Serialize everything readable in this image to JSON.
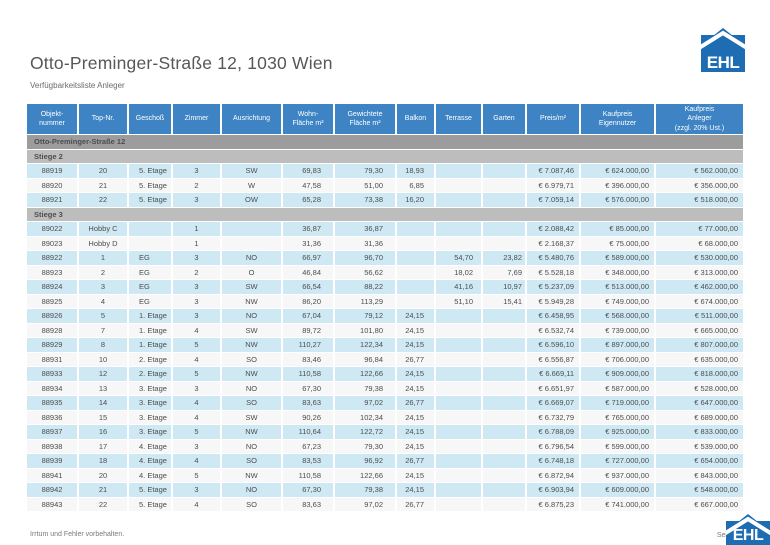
{
  "header": {
    "title": "Otto-Preminger-Straße 12, 1030 Wien",
    "subtitle": "Verfügbarkeitsliste Anleger"
  },
  "logo": {
    "text": "EHL"
  },
  "footer": {
    "disclaimer": "Irrtum und Fehler vorbehalten.",
    "page_text": "Sei"
  },
  "colors": {
    "header_blue": "#3e84c4",
    "logo_blue": "#1e6cb2",
    "group_gray": "#9c9c9c",
    "stiege_gray": "#bdbdbd",
    "row_blue": "#cfe9f4",
    "row_white": "#f7f7f7"
  },
  "table": {
    "group_title": "Otto-Preminger-Straße 12",
    "columns": [
      {
        "lines": [
          "Objekt-",
          "nummer"
        ]
      },
      {
        "lines": [
          "Top-Nr."
        ]
      },
      {
        "lines": [
          "Geschoß"
        ]
      },
      {
        "lines": [
          "Zimmer"
        ]
      },
      {
        "lines": [
          "Ausrichtung"
        ]
      },
      {
        "lines": [
          "Wohn-",
          "Fläche m²"
        ]
      },
      {
        "lines": [
          "Gewichtete",
          "Fläche m²"
        ]
      },
      {
        "lines": [
          "Balkon"
        ]
      },
      {
        "lines": [
          "Terrasse"
        ]
      },
      {
        "lines": [
          "Garten"
        ]
      },
      {
        "lines": [
          "Preis/m²"
        ]
      },
      {
        "lines": [
          "Kaufpreis",
          "Eigennutzer"
        ]
      },
      {
        "lines": [
          "Kaufpreis",
          "Anleger",
          "(zzgl. 20% Ust.)"
        ]
      }
    ],
    "sections": [
      {
        "label": "Stiege 2",
        "rows": [
          [
            "88919",
            "20",
            "5. Etage",
            "3",
            "SW",
            "69,83",
            "79,30",
            "18,93",
            "",
            "",
            "€ 7.087,46",
            "€ 624.000,00",
            "€ 562.000,00"
          ],
          [
            "88920",
            "21",
            "5. Etage",
            "2",
            "W",
            "47,58",
            "51,00",
            "6,85",
            "",
            "",
            "€ 6.979,71",
            "€ 396.000,00",
            "€ 356.000,00"
          ],
          [
            "88921",
            "22",
            "5. Etage",
            "3",
            "OW",
            "65,28",
            "73,38",
            "16,20",
            "",
            "",
            "€ 7.059,14",
            "€ 576.000,00",
            "€ 518.000,00"
          ]
        ]
      },
      {
        "label": "Stiege 3",
        "rows": [
          [
            "89022",
            "Hobby C",
            "",
            "1",
            "",
            "36,87",
            "36,87",
            "",
            "",
            "",
            "€ 2.088,42",
            "€ 85.000,00",
            "€ 77.000,00"
          ],
          [
            "89023",
            "Hobby D",
            "",
            "1",
            "",
            "31,36",
            "31,36",
            "",
            "",
            "",
            "€ 2.168,37",
            "€ 75.000,00",
            "€ 68.000,00"
          ],
          [
            "88922",
            "1",
            "EG",
            "3",
            "NO",
            "66,97",
            "96,70",
            "",
            "54,70",
            "23,82",
            "€ 5.480,76",
            "€ 589.000,00",
            "€ 530.000,00"
          ],
          [
            "88923",
            "2",
            "EG",
            "2",
            "O",
            "46,84",
            "56,62",
            "",
            "18,02",
            "7,69",
            "€ 5.528,18",
            "€ 348.000,00",
            "€ 313.000,00"
          ],
          [
            "88924",
            "3",
            "EG",
            "3",
            "SW",
            "66,54",
            "88,22",
            "",
            "41,16",
            "10,97",
            "€ 5.237,09",
            "€ 513.000,00",
            "€ 462.000,00"
          ],
          [
            "88925",
            "4",
            "EG",
            "3",
            "NW",
            "86,20",
            "113,29",
            "",
            "51,10",
            "15,41",
            "€ 5.949,28",
            "€ 749.000,00",
            "€ 674.000,00"
          ],
          [
            "88926",
            "5",
            "1. Etage",
            "3",
            "NO",
            "67,04",
            "79,12",
            "24,15",
            "",
            "",
            "€ 6.458,95",
            "€ 568.000,00",
            "€ 511.000,00"
          ],
          [
            "88928",
            "7",
            "1. Etage",
            "4",
            "SW",
            "89,72",
            "101,80",
            "24,15",
            "",
            "",
            "€ 6.532,74",
            "€ 739.000,00",
            "€ 665.000,00"
          ],
          [
            "88929",
            "8",
            "1. Etage",
            "5",
            "NW",
            "110,27",
            "122,34",
            "24,15",
            "",
            "",
            "€ 6.596,10",
            "€ 897.000,00",
            "€ 807.000,00"
          ],
          [
            "88931",
            "10",
            "2. Etage",
            "4",
            "SO",
            "83,46",
            "96,84",
            "26,77",
            "",
            "",
            "€ 6.556,87",
            "€ 706.000,00",
            "€ 635.000,00"
          ],
          [
            "88933",
            "12",
            "2. Etage",
            "5",
            "NW",
            "110,58",
            "122,66",
            "24,15",
            "",
            "",
            "€ 6.669,11",
            "€ 909.000,00",
            "€ 818.000,00"
          ],
          [
            "88934",
            "13",
            "3. Etage",
            "3",
            "NO",
            "67,30",
            "79,38",
            "24,15",
            "",
            "",
            "€ 6.651,97",
            "€ 587.000,00",
            "€ 528.000,00"
          ],
          [
            "88935",
            "14",
            "3. Etage",
            "4",
            "SO",
            "83,63",
            "97,02",
            "26,77",
            "",
            "",
            "€ 6.669,07",
            "€ 719.000,00",
            "€ 647.000,00"
          ],
          [
            "88936",
            "15",
            "3. Etage",
            "4",
            "SW",
            "90,26",
            "102,34",
            "24,15",
            "",
            "",
            "€ 6.732,79",
            "€ 765.000,00",
            "€ 689.000,00"
          ],
          [
            "88937",
            "16",
            "3. Etage",
            "5",
            "NW",
            "110,64",
            "122,72",
            "24,15",
            "",
            "",
            "€ 6.788,09",
            "€ 925.000,00",
            "€ 833.000,00"
          ],
          [
            "88938",
            "17",
            "4. Etage",
            "3",
            "NO",
            "67,23",
            "79,30",
            "24,15",
            "",
            "",
            "€ 6.796,54",
            "€ 599.000,00",
            "€ 539.000,00"
          ],
          [
            "88939",
            "18",
            "4. Etage",
            "4",
            "SO",
            "83,53",
            "96,92",
            "26,77",
            "",
            "",
            "€ 6.748,18",
            "€ 727.000,00",
            "€ 654.000,00"
          ],
          [
            "88941",
            "20",
            "4. Etage",
            "5",
            "NW",
            "110,58",
            "122,66",
            "24,15",
            "",
            "",
            "€ 6.872,94",
            "€ 937.000,00",
            "€ 843.000,00"
          ],
          [
            "88942",
            "21",
            "5. Etage",
            "3",
            "NO",
            "67,30",
            "79,38",
            "24,15",
            "",
            "",
            "€ 6.903,94",
            "€ 609.000,00",
            "€ 548.000,00"
          ],
          [
            "88943",
            "22",
            "5. Etage",
            "4",
            "SO",
            "83,63",
            "97,02",
            "26,77",
            "",
            "",
            "€ 6.875,23",
            "€ 741.000,00",
            "€ 667.000,00"
          ]
        ]
      }
    ]
  }
}
